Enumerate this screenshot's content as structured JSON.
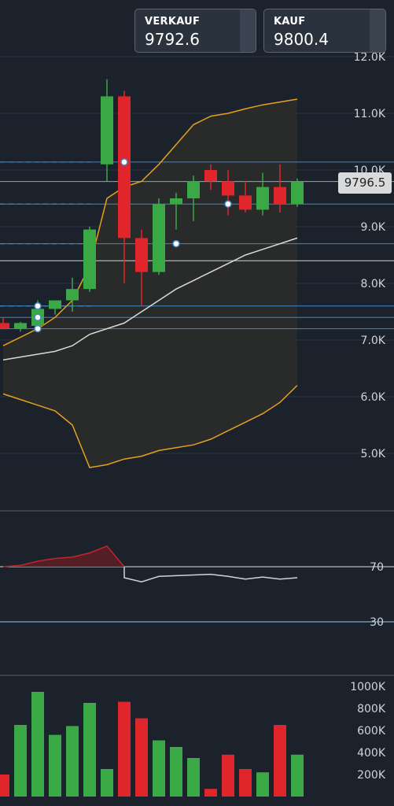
{
  "quotes": {
    "sell": {
      "label": "VERKAUF",
      "value": "9792.6"
    },
    "buy": {
      "label": "KAUF",
      "value": "9800.4"
    }
  },
  "current_price_label": "9796.5",
  "colors": {
    "background": "#1b222b",
    "up": "#3aa845",
    "down": "#e0262a",
    "bollinger": "#e6a01e",
    "sma": "#d8d8d8",
    "level": "#3f89c9",
    "grid": "#2b3440"
  },
  "chart_data": [
    {
      "type": "candlestick",
      "title": "",
      "y_ticks": [
        "5.0K",
        "6.0K",
        "7.0K",
        "8.0K",
        "9.0K",
        "10.0K",
        "11.0K",
        "12.0K"
      ],
      "ylim": [
        4350,
        12100
      ],
      "candles": [
        {
          "o": 7300,
          "h": 7400,
          "l": 7200,
          "c": 7200
        },
        {
          "o": 7200,
          "h": 7320,
          "l": 7150,
          "c": 7300
        },
        {
          "o": 7250,
          "h": 7700,
          "l": 7150,
          "c": 7550
        },
        {
          "o": 7550,
          "h": 7700,
          "l": 7450,
          "c": 7700
        },
        {
          "o": 7700,
          "h": 8100,
          "l": 7500,
          "c": 7900
        },
        {
          "o": 7900,
          "h": 9000,
          "l": 7850,
          "c": 8950
        },
        {
          "o": 10100,
          "h": 11600,
          "l": 9800,
          "c": 11300
        },
        {
          "o": 11300,
          "h": 11400,
          "l": 8000,
          "c": 8800
        },
        {
          "o": 8800,
          "h": 8950,
          "l": 7600,
          "c": 8200
        },
        {
          "o": 8200,
          "h": 9500,
          "l": 8150,
          "c": 9400
        },
        {
          "o": 9400,
          "h": 9600,
          "l": 8950,
          "c": 9500
        },
        {
          "o": 9500,
          "h": 9900,
          "l": 9100,
          "c": 9800
        },
        {
          "o": 10000,
          "h": 10100,
          "l": 9650,
          "c": 9800
        },
        {
          "o": 9800,
          "h": 10000,
          "l": 9200,
          "c": 9550
        },
        {
          "o": 9550,
          "h": 9800,
          "l": 9250,
          "c": 9300
        },
        {
          "o": 9300,
          "h": 9950,
          "l": 9200,
          "c": 9700
        },
        {
          "o": 9700,
          "h": 10100,
          "l": 9250,
          "c": 9400
        },
        {
          "o": 9400,
          "h": 9850,
          "l": 9350,
          "c": 9796.5
        }
      ],
      "bollinger_upper": [
        6900,
        7050,
        7200,
        7400,
        7700,
        8300,
        9500,
        9700,
        9800,
        10100,
        10450,
        10800,
        10950,
        11000,
        11080,
        11150,
        11200,
        11250
      ],
      "bollinger_lower": [
        6050,
        5950,
        5850,
        5750,
        5500,
        4750,
        4800,
        4900,
        4950,
        5050,
        5100,
        5150,
        5250,
        5400,
        5550,
        5700,
        5900,
        6200
      ],
      "sma": [
        6650,
        6700,
        6750,
        6800,
        6900,
        7100,
        7200,
        7300,
        7500,
        7700,
        7900,
        8050,
        8200,
        8350,
        8500,
        8600,
        8700,
        8800
      ],
      "levels_solid": [
        10140,
        9796.5,
        9400,
        8700,
        8400,
        7600,
        7400,
        7200
      ],
      "levels_dashed": [
        10140,
        9400,
        8700,
        7600
      ],
      "markers": [
        {
          "x": 7,
          "y": 10140
        },
        {
          "x": 13,
          "y": 9400
        },
        {
          "x": 10,
          "y": 8700
        },
        {
          "x": 2,
          "y": 7600
        },
        {
          "x": 2,
          "y": 7400
        },
        {
          "x": 2,
          "y": 7200
        }
      ],
      "current_price": 9796.5
    },
    {
      "type": "line",
      "y_ticks": [
        "70",
        "30"
      ],
      "ylim": [
        0,
        100
      ],
      "levels": [
        70,
        30
      ],
      "values": [
        70,
        71,
        74,
        76,
        77,
        80,
        85,
        62,
        59,
        63,
        63.5,
        64,
        64.5,
        63,
        61,
        62.5,
        61,
        62
      ]
    },
    {
      "type": "bar",
      "y_ticks": [
        "200K",
        "400K",
        "600K",
        "800K",
        "1000K"
      ],
      "ylim": [
        0,
        1000000
      ],
      "values": [
        {
          "v": 200000,
          "dir": "down"
        },
        {
          "v": 650000,
          "dir": "up"
        },
        {
          "v": 950000,
          "dir": "up"
        },
        {
          "v": 560000,
          "dir": "up"
        },
        {
          "v": 640000,
          "dir": "up"
        },
        {
          "v": 850000,
          "dir": "up"
        },
        {
          "v": 250000,
          "dir": "up"
        },
        {
          "v": 860000,
          "dir": "down"
        },
        {
          "v": 710000,
          "dir": "down"
        },
        {
          "v": 510000,
          "dir": "up"
        },
        {
          "v": 450000,
          "dir": "up"
        },
        {
          "v": 350000,
          "dir": "up"
        },
        {
          "v": 70000,
          "dir": "down"
        },
        {
          "v": 380000,
          "dir": "down"
        },
        {
          "v": 250000,
          "dir": "down"
        },
        {
          "v": 220000,
          "dir": "up"
        },
        {
          "v": 650000,
          "dir": "down"
        },
        {
          "v": 380000,
          "dir": "up"
        }
      ]
    }
  ]
}
